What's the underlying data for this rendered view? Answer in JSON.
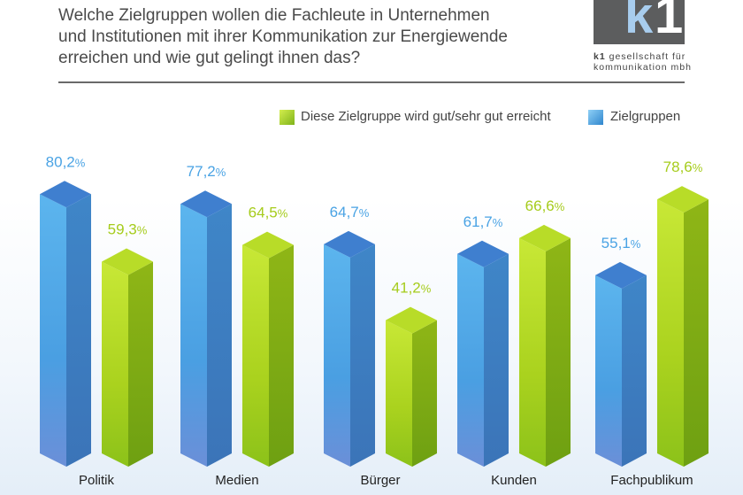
{
  "title_lines": [
    "Welche Zielgruppen wollen die Fachleute in Unternehmen",
    "und Institutionen mit ihrer Kommunikation zur Energiewende",
    "erreichen und wie gut gelingt ihnen das?"
  ],
  "logo": {
    "k": "k",
    "one": "1",
    "brand": "k1",
    "line1": "gesellschaft für",
    "line2": "kommunikation mbh"
  },
  "colors": {
    "blue": "#4aa3e4",
    "green": "#a6cc1c"
  },
  "chart_data": {
    "type": "bar",
    "categories": [
      "Politik",
      "Medien",
      "Bürger",
      "Kunden",
      "Fachpublikum"
    ],
    "series": [
      {
        "name": "Zielgruppen",
        "values": [
          80.2,
          77.2,
          64.7,
          61.7,
          55.1
        ],
        "labels": [
          "80,2",
          "77,2",
          "64,7",
          "61,7",
          "55,1"
        ]
      },
      {
        "name": "Diese Zielgruppe wird gut/sehr gut erreicht",
        "values": [
          59.3,
          64.5,
          41.2,
          66.6,
          78.6
        ],
        "labels": [
          "59,3",
          "64,5",
          "41,2",
          "66,6",
          "78,6"
        ]
      }
    ],
    "unit": "%",
    "legend": [
      "Diese Zielgruppe wird gut/sehr gut erreicht",
      "Zielgruppen"
    ],
    "legend_position": "top-right",
    "ylim": [
      0,
      100
    ]
  }
}
